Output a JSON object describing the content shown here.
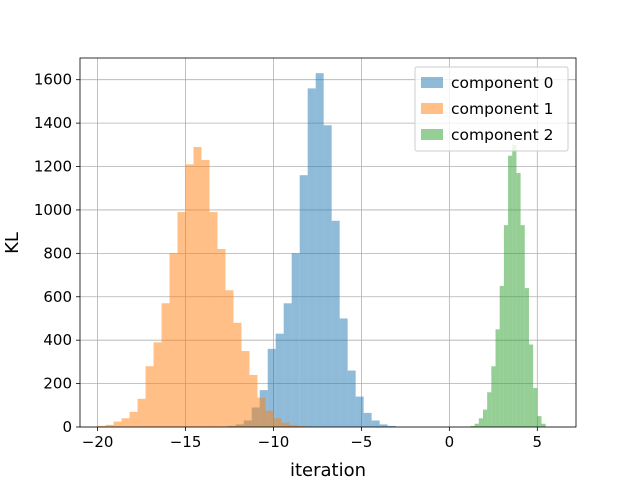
{
  "chart_data": {
    "type": "histogram",
    "title": "",
    "xlabel": "iteration",
    "ylabel": "KL",
    "xlim": [
      -21.0,
      7.2
    ],
    "ylim": [
      0,
      1700
    ],
    "xticks": [
      -20,
      -15,
      -10,
      -5,
      0,
      5
    ],
    "xtick_labels": [
      "−20",
      "−15",
      "−10",
      "−5",
      "0",
      "5"
    ],
    "yticks": [
      0,
      200,
      400,
      600,
      800,
      1000,
      1200,
      1400,
      1600
    ],
    "ytick_labels": [
      "0",
      "200",
      "400",
      "600",
      "800",
      "1000",
      "1200",
      "1400",
      "1600"
    ],
    "grid": true,
    "legend_position": "top-right",
    "series": [
      {
        "name": "component 0",
        "color": "#1f77b4",
        "opacity": 0.5,
        "bin_start": -12.6,
        "bin_width": 0.4545,
        "values": [
          5,
          12,
          30,
          90,
          170,
          360,
          430,
          570,
          800,
          1160,
          1560,
          1630,
          1390,
          950,
          500,
          260,
          140,
          65,
          30,
          12,
          5
        ]
      },
      {
        "name": "component 1",
        "color": "#ff7f0e",
        "opacity": 0.5,
        "bin_start": -20.0,
        "bin_width": 0.4545,
        "values": [
          5,
          10,
          25,
          40,
          70,
          130,
          280,
          390,
          570,
          800,
          990,
          1210,
          1290,
          1230,
          990,
          820,
          630,
          480,
          350,
          240,
          135,
          75,
          40,
          20,
          10,
          5
        ]
      },
      {
        "name": "component 2",
        "color": "#2ca02c",
        "opacity": 0.5,
        "bin_start": 1.2,
        "bin_width": 0.2375,
        "values": [
          5,
          15,
          40,
          80,
          160,
          280,
          450,
          650,
          930,
          1250,
          1300,
          1170,
          930,
          640,
          380,
          180,
          50,
          15
        ]
      }
    ]
  }
}
